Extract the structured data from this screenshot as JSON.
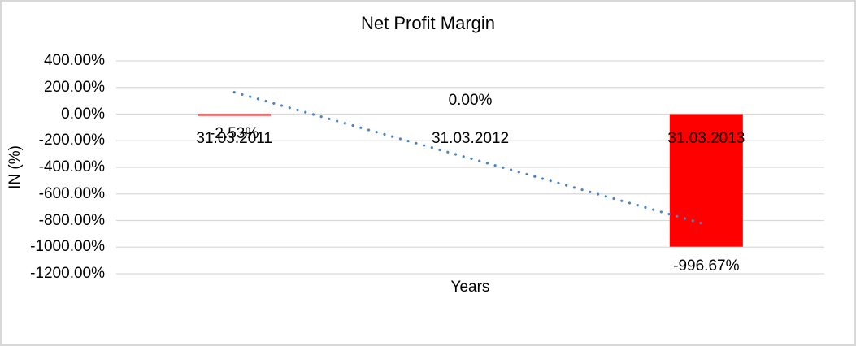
{
  "window": {
    "background_color": "#ffffff",
    "border_color": "#d8d8d8"
  },
  "chart": {
    "colors": {
      "bar": "#ff0000",
      "trendline": "#4a86c8",
      "gridline": "#d9d9d9",
      "text": "#000000"
    }
  },
  "chart_data": {
    "type": "bar",
    "title": "Net Profit Margin",
    "xlabel": "Years",
    "ylabel": "IN (%)",
    "categories": [
      "31.03.2011",
      "31.03.2012",
      "31.03.2013"
    ],
    "values": [
      -2.53,
      0,
      -996.67
    ],
    "data_labels": [
      "-2.53%",
      "0.00%",
      "-996.67%"
    ],
    "ylim": [
      -1200,
      400
    ],
    "y_tick_values": [
      400,
      200,
      0,
      -200,
      -400,
      -600,
      -800,
      -1000,
      -1200
    ],
    "y_tick_labels": [
      "400.00%",
      "200.00%",
      "0.00%",
      "-200.00%",
      "-400.00%",
      "-600.00%",
      "-800.00%",
      "-1000.00%",
      "-1200.00%"
    ],
    "grid": true,
    "legend": "none",
    "trendline": {
      "type": "linear",
      "style": "dotted",
      "applies_to": "values"
    }
  }
}
